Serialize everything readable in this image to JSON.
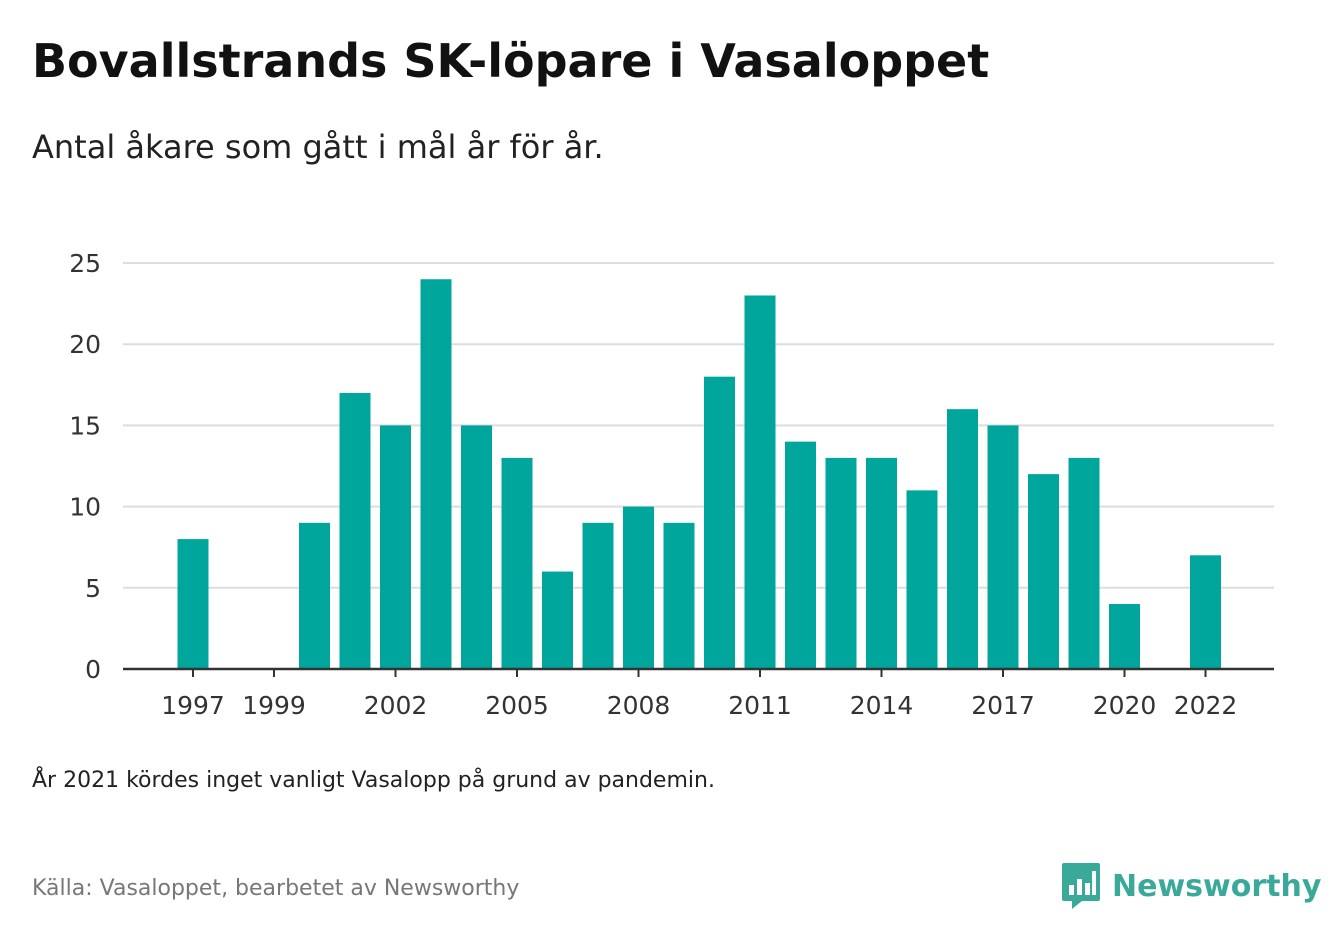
{
  "title": "Bovallstrands SK-löpare i Vasaloppet",
  "subtitle": "Antal åkare som gått i mål år för år.",
  "note": "År 2021 kördes inget vanligt Vasalopp på grund av pandemin.",
  "source": "Källa: Vasaloppet, bearbetet av Newsworthy",
  "brand": {
    "name": "Newsworthy",
    "icon": "newsworthy-logo-icon",
    "color": "#3aa99a"
  },
  "colors": {
    "bar": "#00a69c",
    "grid": "#dddddd",
    "axis": "#333333"
  },
  "chart_data": {
    "type": "bar",
    "categories": [
      1997,
      1998,
      1999,
      2000,
      2001,
      2002,
      2003,
      2004,
      2005,
      2006,
      2007,
      2008,
      2009,
      2010,
      2011,
      2012,
      2013,
      2014,
      2015,
      2016,
      2017,
      2018,
      2019,
      2020,
      2021,
      2022
    ],
    "values": [
      8,
      0,
      0,
      9,
      17,
      15,
      24,
      15,
      13,
      6,
      9,
      10,
      9,
      18,
      23,
      14,
      13,
      13,
      11,
      16,
      15,
      12,
      13,
      4,
      0,
      7
    ],
    "x_tick_labels": [
      "1997",
      "1999",
      "2002",
      "2005",
      "2008",
      "2011",
      "2014",
      "2017",
      "2020",
      "2022"
    ],
    "y_ticks": [
      0,
      5,
      10,
      15,
      20,
      25
    ],
    "ylim": [
      0,
      25
    ],
    "xlabel": "",
    "ylabel": "",
    "grid": true,
    "legend": false
  }
}
